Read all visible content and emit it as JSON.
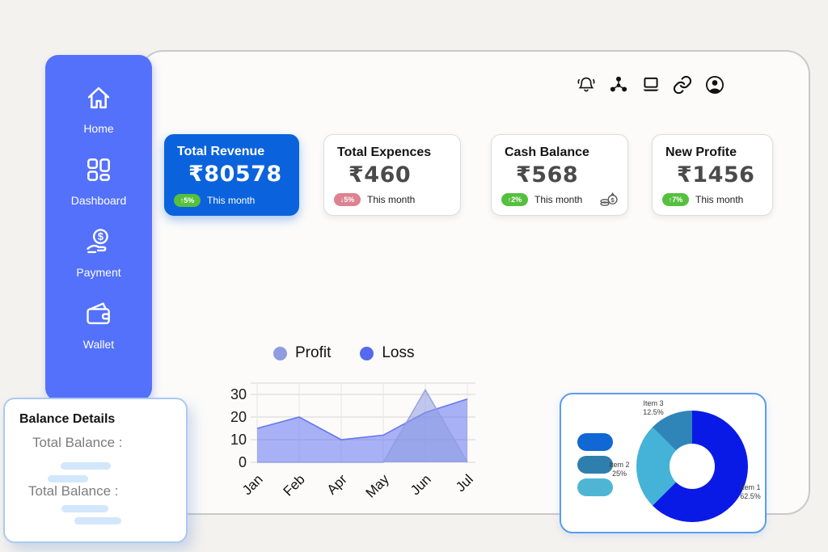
{
  "colors": {
    "sidebar": "#5471fb",
    "primary_card": "#0a63dc",
    "badge_green": "#56c03e",
    "badge_red": "#dd8291",
    "skeleton": "#d2e7fb"
  },
  "topbar": {
    "icons": [
      "notifications-bell",
      "user-network",
      "laptop",
      "link",
      "profile"
    ]
  },
  "sidebar": {
    "items": [
      {
        "label": "Home",
        "icon": "home"
      },
      {
        "label": "Dashboard",
        "icon": "dashboard"
      },
      {
        "label": "Payment",
        "icon": "payment"
      },
      {
        "label": "Wallet",
        "icon": "wallet"
      }
    ]
  },
  "stat_cards": [
    {
      "title": "Total Revenue",
      "value": "₹80578",
      "change_label": "↑5%",
      "change_dir": "up",
      "period": "This month"
    },
    {
      "title": "Total Expences",
      "value": "₹460",
      "change_label": "↓5%",
      "change_dir": "down",
      "period": "This month"
    },
    {
      "title": "Cash Balance",
      "value": "₹568",
      "change_label": "↑2%",
      "change_dir": "up",
      "period": "This month",
      "icon": "money-bag"
    },
    {
      "title": "New Profite",
      "value": "₹1456",
      "change_label": "↑7%",
      "change_dir": "up",
      "period": "This month"
    }
  ],
  "chart_data": [
    {
      "type": "area",
      "categories": [
        "Jan",
        "Feb",
        "Apr",
        "May",
        "Jun",
        "Jul"
      ],
      "series": [
        {
          "name": "Profit",
          "color": "#8e9ce0",
          "values": [
            0,
            0,
            0,
            0,
            32,
            0
          ]
        },
        {
          "name": "Loss",
          "color": "#5468f0",
          "values": [
            15,
            20,
            10,
            12,
            22,
            28
          ]
        }
      ],
      "ylim": [
        0,
        35
      ],
      "yticks": [
        0,
        10,
        20,
        30
      ],
      "grid": true,
      "legend_position": "top"
    },
    {
      "type": "donut",
      "slices": [
        {
          "label": "Item 1",
          "pct": 62.5,
          "pct_label": "62.5%",
          "color": "#0a1ae6"
        },
        {
          "label": "Item 2",
          "pct": 25,
          "pct_label": "25%",
          "color": "#45b3d8"
        },
        {
          "label": "Item 3",
          "pct": 12.5,
          "pct_label": "12.5%",
          "color": "#2f85b8"
        }
      ],
      "legend_pills": [
        "#1168d4",
        "#2f7fae",
        "#4eb6d4"
      ],
      "hole_ratio": 0.41,
      "start_angle_deg": 0
    }
  ],
  "balance_panel": {
    "title": "Balance Details",
    "rows": [
      {
        "label": "Total Balance :"
      },
      {
        "label": "Total Balance :"
      }
    ]
  }
}
